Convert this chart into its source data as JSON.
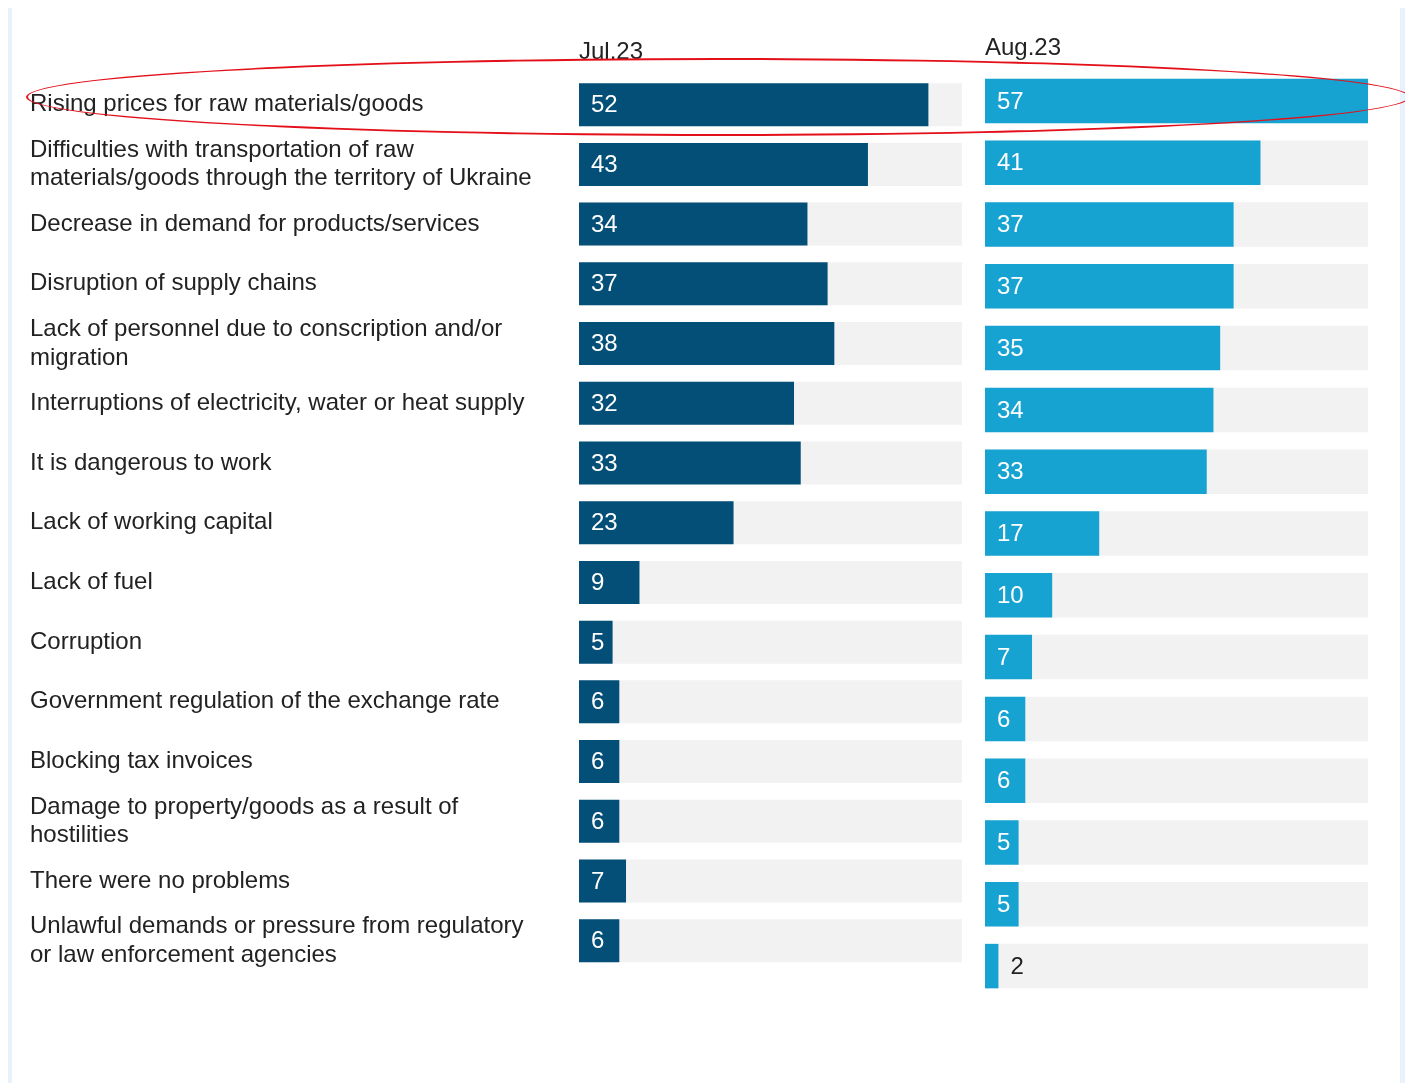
{
  "chart_data": [
    {
      "type": "bar",
      "orientation": "horizontal",
      "title": "Jul.23",
      "categories": [
        "Rising prices for raw materials/goods",
        "Difficulties with transportation of raw materials/goods through the territory of Ukraine",
        "Decrease in demand for products/services",
        "Disruption of supply chains",
        "Lack of personnel due to conscription and/or migration",
        "Interruptions of electricity, water or heat supply",
        "It is dangerous to work",
        "Lack of working capital",
        "Lack of fuel",
        "Corruption",
        "Government regulation of the exchange rate",
        "Blocking tax invoices",
        "Damage to property/goods as a result of hostilities",
        "There were no problems",
        "Unlawful demands or pressure from regulatory or law enforcement agencies"
      ],
      "values": [
        52,
        43,
        34,
        37,
        38,
        32,
        33,
        23,
        9,
        5,
        6,
        6,
        6,
        7,
        6
      ],
      "color": "#034f78",
      "xlim": [
        0,
        57
      ],
      "data_labels": true,
      "tick_labels": "y"
    },
    {
      "type": "bar",
      "orientation": "horizontal",
      "title": "Aug.23",
      "values": [
        57,
        41,
        37,
        37,
        35,
        34,
        33,
        17,
        10,
        7,
        6,
        6,
        5,
        5,
        2
      ],
      "color": "#17a3d1",
      "xlim": [
        0,
        57
      ],
      "data_labels": true,
      "tick_labels": false
    }
  ]
}
